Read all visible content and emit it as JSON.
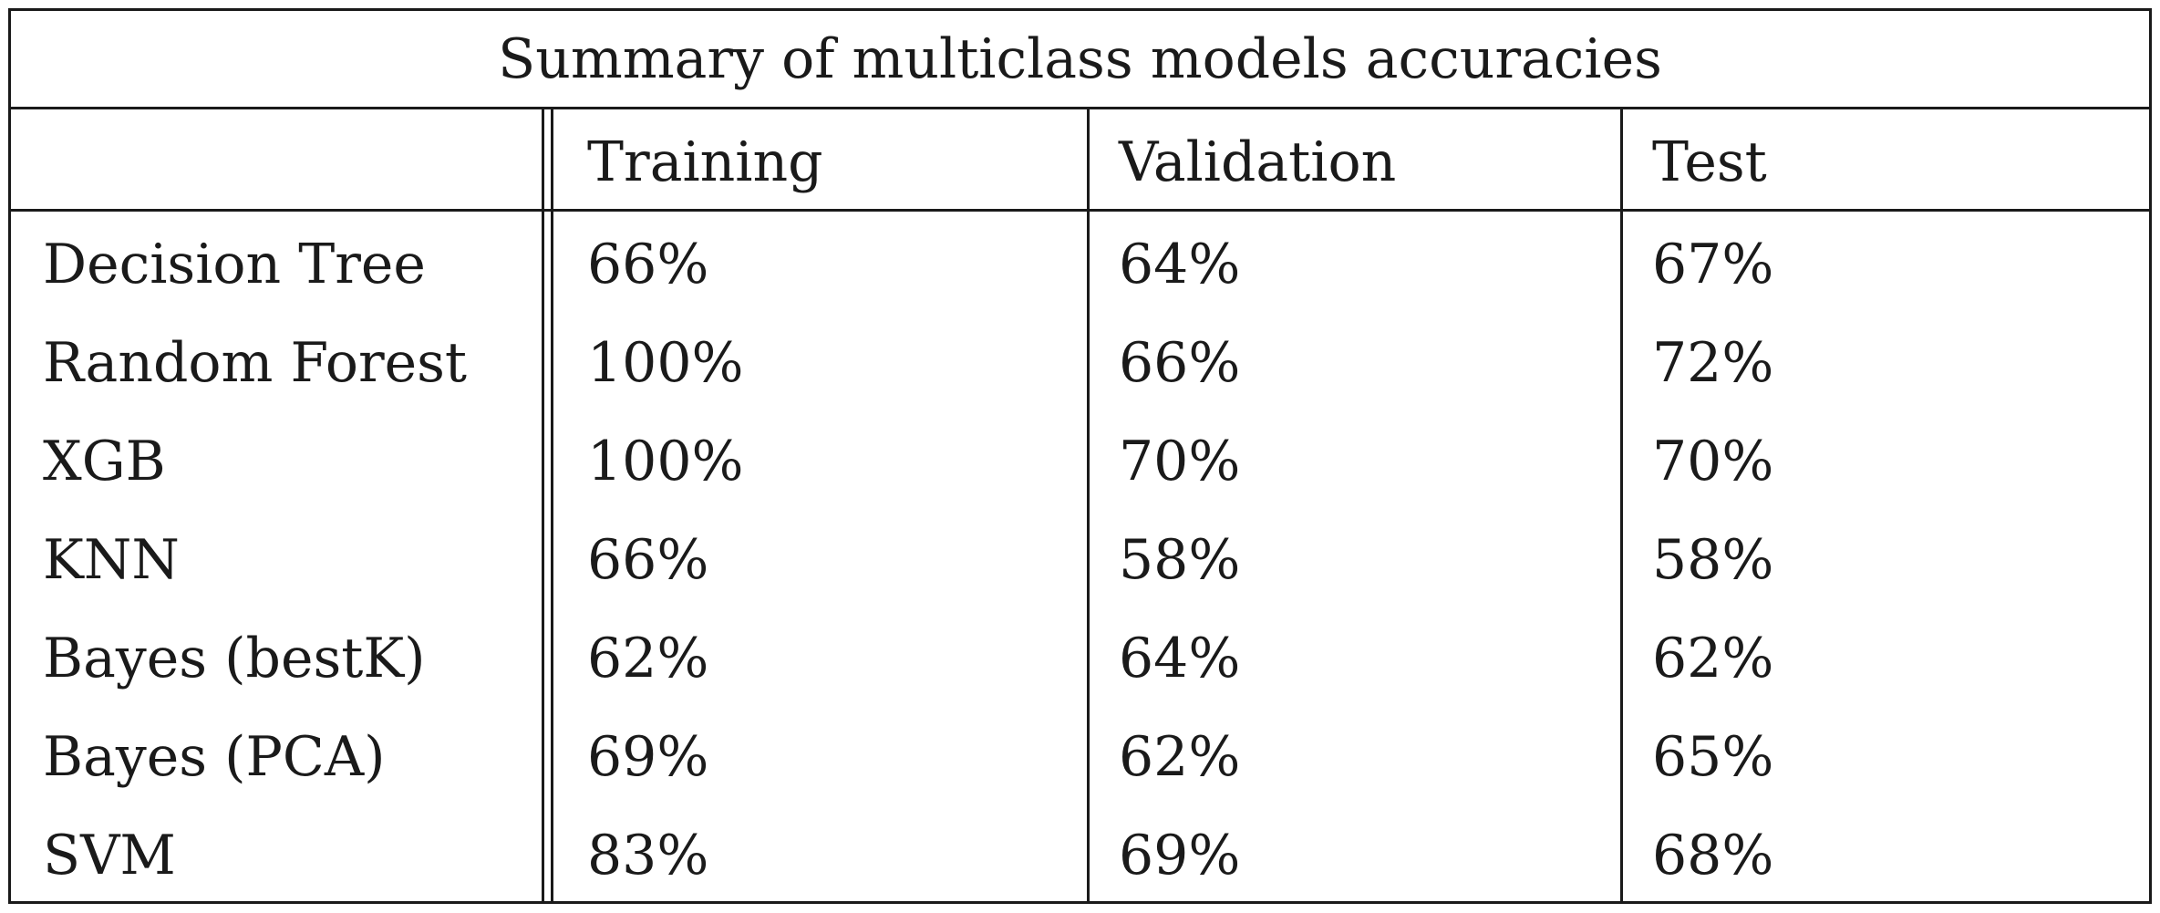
{
  "table": {
    "title": "Summary of multiclass models accuracies",
    "headers": [
      "",
      "Training",
      "Validation",
      "Test"
    ],
    "rows": [
      {
        "model": "Decision Tree",
        "values": [
          "66%",
          "64%",
          "67%"
        ]
      },
      {
        "model": "Random Forest",
        "values": [
          "100%",
          "66%",
          "72%"
        ]
      },
      {
        "model": "XGB",
        "values": [
          "100%",
          "70%",
          "70%"
        ]
      },
      {
        "model": "KNN",
        "values": [
          "66%",
          "58%",
          "58%"
        ]
      },
      {
        "model": "Bayes (bestK)",
        "values": [
          "62%",
          "64%",
          "62%"
        ]
      },
      {
        "model": "Bayes (PCA)",
        "values": [
          "69%",
          "62%",
          "65%"
        ]
      },
      {
        "model": "SVM",
        "values": [
          "83%",
          "69%",
          "68%"
        ]
      }
    ]
  }
}
